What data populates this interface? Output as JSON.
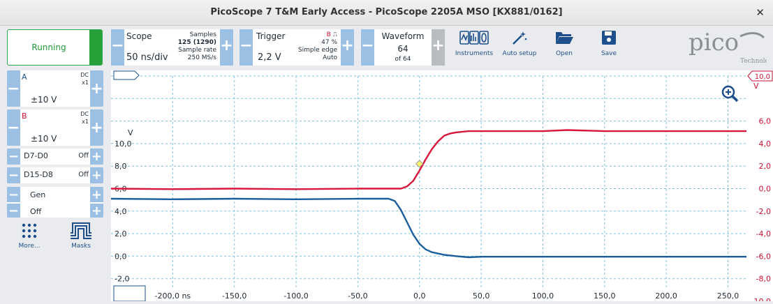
{
  "window": {
    "title": "PicoScope 7 T&M Early Access  - PicoScope 2205A MSO [KX881/0162]",
    "close": "✕"
  },
  "run": {
    "label": "Running"
  },
  "scope": {
    "title": "Scope",
    "timebase": "50 ns/div",
    "samples_label": "Samples",
    "samples_value": "125 (1290)",
    "rate_label": "Sample rate",
    "rate_value": "250 MS/s"
  },
  "trigger": {
    "title": "Trigger",
    "level": "2,2 V",
    "channel": "B",
    "percent": "47 %",
    "type": "Simple edge",
    "mode": "Auto"
  },
  "waveform": {
    "title": "Waveform",
    "current": "64",
    "total": "of 64"
  },
  "toolbar": {
    "instruments": "Instruments",
    "autosetup": "Auto setup",
    "open": "Open",
    "save": "Save"
  },
  "logo": {
    "brand": "pico",
    "sub": "Technology"
  },
  "channels": [
    {
      "name": "A",
      "coupling": "DC",
      "probe": "x1",
      "range": "±10 V",
      "color": "#1b4f8e"
    },
    {
      "name": "B",
      "coupling": "DC",
      "probe": "x1",
      "range": "±10 V",
      "color": "#cc1133"
    }
  ],
  "digital": [
    {
      "name": "D7-D0",
      "state": "Off"
    },
    {
      "name": "D15-D8",
      "state": "Off"
    }
  ],
  "gen": {
    "name": "Gen",
    "state": "Off"
  },
  "more": {
    "label": "More..."
  },
  "masks": {
    "label": "Masks"
  },
  "chart_data": {
    "type": "line",
    "x_unit": "ns",
    "x_ticks": [
      "-200,0 ns",
      "-150,0",
      "-100,0",
      "-50,0",
      "0,0",
      "50,0",
      "100,0",
      "150,0",
      "200,0",
      "250,0"
    ],
    "x_tick_values": [
      -200,
      -150,
      -100,
      -50,
      0,
      50,
      100,
      150,
      200,
      250
    ],
    "xlim": [
      -250,
      265
    ],
    "left_axis": {
      "unit": "V",
      "ticks": [
        "10,0",
        "8,0",
        "6,0",
        "4,0",
        "2,0",
        "0,0",
        "-2,0"
      ],
      "tick_values": [
        10,
        8,
        6,
        4,
        2,
        0,
        -2
      ]
    },
    "right_axis": {
      "unit": "V",
      "top_marker": "10,0",
      "ticks": [
        "6,0",
        "4,0",
        "2,0",
        "0,0",
        "-2,0",
        "-4,0",
        "-6,0",
        "-8,0",
        "-10,0"
      ],
      "tick_values": [
        6,
        4,
        2,
        0,
        -2,
        -4,
        -6,
        -8,
        -10
      ]
    },
    "grid": true,
    "trigger_point": {
      "x": 0,
      "y": 2.2
    },
    "series": [
      {
        "name": "A",
        "color": "#1b5e9c",
        "axis": "left",
        "x": [
          -250,
          -200,
          -150,
          -100,
          -50,
          -25,
          -20,
          -15,
          -10,
          -5,
          0,
          5,
          10,
          20,
          30,
          40,
          50,
          100,
          150,
          200,
          265
        ],
        "y": [
          5.1,
          5.05,
          5.1,
          5.05,
          5.1,
          5.1,
          4.9,
          4.1,
          3.0,
          1.9,
          1.1,
          0.6,
          0.35,
          0.12,
          0.0,
          -0.1,
          -0.05,
          -0.05,
          -0.05,
          -0.05,
          -0.05
        ]
      },
      {
        "name": "B",
        "color": "#d8163c",
        "axis": "right",
        "x": [
          -250,
          -200,
          -150,
          -100,
          -50,
          -15,
          -10,
          -5,
          0,
          5,
          10,
          15,
          20,
          25,
          30,
          40,
          50,
          100,
          120,
          150,
          200,
          265
        ],
        "y": [
          0.0,
          -0.05,
          0.0,
          -0.05,
          0.0,
          0.0,
          0.2,
          0.7,
          1.6,
          2.6,
          3.5,
          4.2,
          4.7,
          4.9,
          5.0,
          5.1,
          5.1,
          5.1,
          5.2,
          5.1,
          5.1,
          5.1
        ]
      }
    ]
  }
}
